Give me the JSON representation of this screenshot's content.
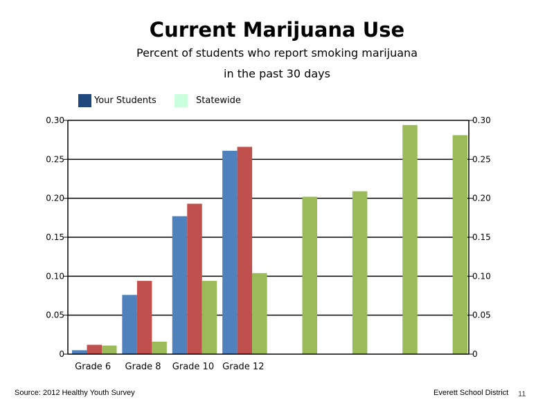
{
  "chart_data": {
    "type": "bar",
    "title": "Current Marijuana Use",
    "subtitle_lines": [
      "Percent of students who report smoking marijuana",
      "in the past 30 days"
    ],
    "legend": [
      {
        "label": "Your Students",
        "color": "#1F497D"
      },
      {
        "label": "Statewide",
        "color": "#CCFFDD"
      }
    ],
    "categories": [
      "Grade 6",
      "Grade 8",
      "Grade 10",
      "Grade 12",
      "",
      "",
      "",
      ""
    ],
    "series": [
      {
        "color": "#4F81BD",
        "values": [
          0.005,
          0.076,
          0.177,
          0.261,
          null,
          null,
          null,
          null
        ]
      },
      {
        "color": "#C0504D",
        "values": [
          0.012,
          0.094,
          0.193,
          0.266,
          null,
          null,
          null,
          null
        ]
      },
      {
        "color": "#9BBB59",
        "values": [
          0.011,
          0.016,
          0.094,
          0.104,
          0.202,
          0.209,
          0.294,
          0.281
        ]
      }
    ],
    "ylim": [
      0,
      0.3
    ],
    "yticks": [
      "0",
      "0.05",
      "0.10",
      "0.15",
      "0.20",
      "0.25",
      "0.30"
    ],
    "y2ticks": [
      "0",
      "0.05",
      "0.10",
      "0.15",
      "0.20",
      "0.25",
      "0.30"
    ],
    "grid": true
  },
  "footer": {
    "source": "Source: 2012 Healthy Youth Survey",
    "org": "Everett School District",
    "page": "11"
  }
}
